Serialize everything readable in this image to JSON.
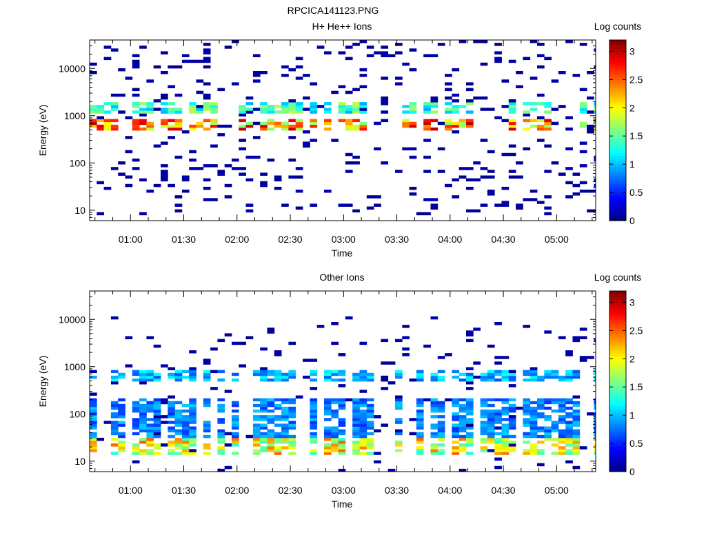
{
  "page_title": "RPCICA141123.PNG",
  "colorbar": {
    "label": "Log counts",
    "ticks": [
      0,
      0.5,
      1,
      1.5,
      2,
      2.5,
      3
    ],
    "range": [
      0,
      3.2
    ],
    "colormap": "jet"
  },
  "chart_data": [
    {
      "type": "heatmap",
      "title": "H+ He++ Ions",
      "xlabel": "Time",
      "ylabel": "Energy (eV)",
      "x_ticks": [
        "01:00",
        "01:30",
        "02:00",
        "02:30",
        "03:00",
        "03:30",
        "04:00",
        "04:30",
        "05:00"
      ],
      "xlim_minutes": [
        37,
        322
      ],
      "y_scale": "log",
      "ylim": [
        6,
        40000
      ],
      "y_ticks": [
        10,
        100,
        1000,
        10000
      ],
      "y_tick_labels": [
        "10",
        "100",
        "1000",
        "10000"
      ],
      "time_step_min": 4,
      "bands": [
        {
          "e_low": 480,
          "e_high": 850,
          "level": 2.9
        },
        {
          "e_low": 1150,
          "e_high": 1900,
          "level": 1.7
        }
      ],
      "sparse_energy_range": [
        8,
        40000
      ],
      "sparse_level": 0.1,
      "sparse_density": 0.08
    },
    {
      "type": "heatmap",
      "title": "Other Ions",
      "xlabel": "Time",
      "ylabel": "Energy (eV)",
      "x_ticks": [
        "01:00",
        "01:30",
        "02:00",
        "02:30",
        "03:00",
        "03:30",
        "04:00",
        "04:30",
        "05:00"
      ],
      "xlim_minutes": [
        37,
        322
      ],
      "y_scale": "log",
      "ylim": [
        6,
        40000
      ],
      "y_ticks": [
        10,
        100,
        1000,
        10000
      ],
      "y_tick_labels": [
        "10",
        "100",
        "1000",
        "10000"
      ],
      "time_step_min": 4,
      "bands": [
        {
          "e_low": 14,
          "e_high": 32,
          "level": 2.4
        },
        {
          "e_low": 500,
          "e_high": 800,
          "level": 1.2
        },
        {
          "e_low": 32,
          "e_high": 220,
          "level": 1.0
        }
      ],
      "sparse_energy_range": [
        6,
        12000
      ],
      "sparse_level": 0.1,
      "sparse_density": 0.04
    }
  ]
}
